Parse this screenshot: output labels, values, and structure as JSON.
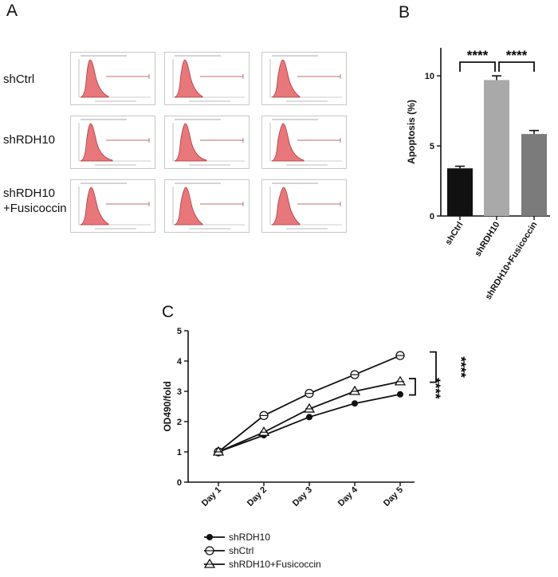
{
  "panel_a": {
    "letter": "A",
    "rows": [
      {
        "line1": "shCtrl",
        "line2": ""
      },
      {
        "line1": "shRDH10",
        "line2": ""
      },
      {
        "line1": "shRDH10",
        "line2": "+Fusicoccin"
      }
    ],
    "fill_color": "#e8777b",
    "stroke_color": "#b03a3e"
  },
  "panel_b": {
    "letter": "B",
    "sig_label": "****"
  },
  "panel_c": {
    "letter": "C",
    "sig_label": "****"
  },
  "chart_data": [
    {
      "type": "bar",
      "title": "",
      "ylabel": "Apoptosis (%)",
      "xlabel": "",
      "ylim": [
        0,
        12
      ],
      "yticks": [
        0,
        5,
        10
      ],
      "categories": [
        "shCtrl",
        "shRDH10",
        "shRDH10+Fusicoccin"
      ],
      "values": [
        3.4,
        9.7,
        5.85
      ],
      "errors": [
        0.15,
        0.3,
        0.25
      ],
      "colors": [
        "#111111",
        "#a9a9a9",
        "#7b7b7b"
      ],
      "significance": [
        {
          "from": 0,
          "to": 1,
          "label": "****"
        },
        {
          "from": 1,
          "to": 2,
          "label": "****"
        }
      ]
    },
    {
      "type": "line",
      "title": "",
      "ylabel": "OD490/fold",
      "xlabel": "",
      "ylim": [
        0,
        5
      ],
      "yticks": [
        0,
        1,
        2,
        3,
        4,
        5
      ],
      "x": [
        "Day 1",
        "Day 2",
        "Day 3",
        "Day 4",
        "Day 5"
      ],
      "series": [
        {
          "name": "shRDH10",
          "marker": "filled-circle",
          "values": [
            1.0,
            1.55,
            2.15,
            2.6,
            2.9
          ]
        },
        {
          "name": "shCtrl",
          "marker": "open-circle",
          "values": [
            1.0,
            2.2,
            2.93,
            3.55,
            4.18
          ]
        },
        {
          "name": "shRDH10+Fusicoccin",
          "marker": "open-triangle",
          "values": [
            1.0,
            1.65,
            2.42,
            3.0,
            3.32
          ]
        }
      ],
      "significance": [
        {
          "label": "****"
        },
        {
          "label": "****"
        }
      ]
    }
  ]
}
